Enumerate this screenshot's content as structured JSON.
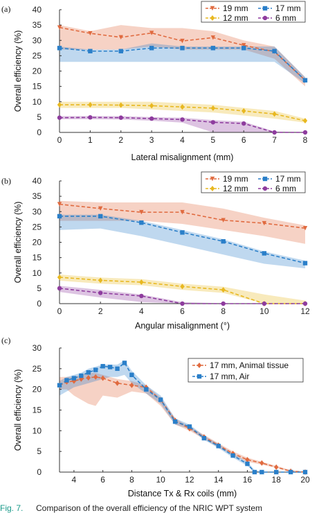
{
  "chart_data": [
    {
      "type": "line",
      "panel_label": "(a)",
      "xlabel": "Lateral misalignment (mm)",
      "ylabel": "Overall efficiency (%)",
      "xlim": [
        0,
        8
      ],
      "ylim": [
        0,
        40
      ],
      "xticks": [
        0,
        1,
        2,
        3,
        4,
        5,
        6,
        7,
        8
      ],
      "yticks": [
        0,
        5,
        10,
        15,
        20,
        25,
        30,
        35,
        40
      ],
      "legend_position": "top-right",
      "legend_columns": 2,
      "grid": false,
      "series": [
        {
          "name": "19 mm",
          "color": "#e06a3f",
          "marker": "triangle-down",
          "x": [
            0,
            1,
            2,
            3,
            4,
            5,
            6,
            7,
            8
          ],
          "values": [
            34.2,
            32.3,
            31.0,
            32.4,
            29.8,
            30.9,
            28.4,
            26.3,
            17.0
          ],
          "band_upper": [
            35,
            33,
            35,
            34,
            34,
            33,
            30,
            28,
            18
          ],
          "band_lower": [
            27,
            27,
            27,
            28,
            27,
            27,
            27,
            24,
            15
          ]
        },
        {
          "name": "17 mm",
          "color": "#2a7fc9",
          "marker": "square",
          "x": [
            0,
            1,
            2,
            3,
            4,
            5,
            6,
            7,
            8
          ],
          "values": [
            27.5,
            26.5,
            26.5,
            27.5,
            27.5,
            27.5,
            27.5,
            26.5,
            17.0
          ],
          "band_upper": [
            28,
            27,
            27,
            29,
            28,
            28,
            28,
            28,
            18
          ],
          "band_lower": [
            23,
            23,
            23,
            23,
            23,
            23,
            23,
            23,
            16
          ]
        },
        {
          "name": "12 mm",
          "color": "#e8b820",
          "marker": "diamond",
          "x": [
            0,
            1,
            2,
            3,
            4,
            5,
            6,
            7,
            8
          ],
          "values": [
            9.0,
            9.0,
            8.9,
            8.7,
            8.3,
            7.9,
            7.0,
            6.0,
            3.8
          ],
          "band_upper": [
            10,
            10,
            10,
            10,
            9.5,
            9,
            8,
            7,
            4.5
          ],
          "band_lower": [
            8,
            8,
            8,
            7.5,
            7,
            6.5,
            5.5,
            4.5,
            3.2
          ]
        },
        {
          "name": "6 mm",
          "color": "#8e3c9e",
          "marker": "circle",
          "x": [
            0,
            1,
            2,
            3,
            4,
            5,
            6,
            7,
            8
          ],
          "values": [
            4.8,
            4.9,
            4.8,
            4.5,
            4.2,
            3.3,
            2.9,
            0.0,
            0.0
          ],
          "band_upper": [
            5.3,
            5.3,
            5.3,
            5.0,
            4.8,
            4.0,
            3.5,
            0.3,
            0.1
          ],
          "band_lower": [
            4.3,
            4.3,
            4.2,
            3.8,
            3.2,
            0.0,
            0.0,
            0.0,
            0.0
          ]
        }
      ]
    },
    {
      "type": "line",
      "panel_label": "(b)",
      "xlabel": "Angular misalignment (°)",
      "ylabel": "Overall efficiency (%)",
      "xlim": [
        0,
        12
      ],
      "ylim": [
        0,
        40
      ],
      "xticks": [
        0,
        2,
        4,
        6,
        8,
        10,
        12
      ],
      "yticks": [
        0,
        5,
        10,
        15,
        20,
        25,
        30,
        35,
        40
      ],
      "legend_position": "top-right",
      "legend_columns": 2,
      "grid": false,
      "series": [
        {
          "name": "19 mm",
          "color": "#e06a3f",
          "marker": "triangle-down",
          "x": [
            0,
            2,
            4,
            6,
            8,
            10,
            12
          ],
          "values": [
            32.4,
            31.0,
            29.8,
            29.8,
            27.2,
            26.2,
            24.6
          ],
          "band_upper": [
            33.5,
            33,
            33,
            33,
            31,
            28,
            25.5
          ],
          "band_lower": [
            27,
            27,
            27,
            26,
            24,
            22,
            19.5
          ]
        },
        {
          "name": "17 mm",
          "color": "#2a7fc9",
          "marker": "square",
          "x": [
            0,
            2,
            4,
            6,
            8,
            10,
            12
          ],
          "values": [
            28.5,
            28.5,
            26.4,
            23.2,
            20.3,
            16.4,
            13.2
          ],
          "band_upper": [
            29,
            29,
            27,
            24,
            21,
            17,
            14
          ],
          "band_lower": [
            24,
            24.5,
            22,
            19,
            16,
            13,
            11.5
          ]
        },
        {
          "name": "12 mm",
          "color": "#e8b820",
          "marker": "diamond",
          "x": [
            0,
            2,
            4,
            6,
            8,
            10,
            12
          ],
          "values": [
            8.6,
            7.6,
            7.0,
            5.6,
            4.5,
            0.0,
            0.0
          ],
          "band_upper": [
            9.5,
            8.5,
            8.0,
            6.5,
            5.5,
            3.0,
            1.0
          ],
          "band_lower": [
            7.5,
            6.5,
            6.0,
            4.5,
            3.5,
            0.0,
            0.0
          ]
        },
        {
          "name": "6 mm",
          "color": "#8e3c9e",
          "marker": "circle",
          "x": [
            0,
            2,
            4,
            6,
            8,
            10,
            12
          ],
          "values": [
            5.0,
            3.5,
            2.5,
            0.0,
            0.0,
            0.0,
            0.0
          ],
          "band_upper": [
            5.8,
            4.5,
            3.0,
            0.5,
            0.1,
            0.0,
            0.0
          ],
          "band_lower": [
            3.8,
            2.0,
            0.5,
            0.0,
            0.0,
            0.0,
            0.0
          ]
        }
      ]
    },
    {
      "type": "line",
      "panel_label": "(c)",
      "xlabel": "Distance Tx & Rx coils (mm)",
      "ylabel": "Overall efficiency (%)",
      "xlim": [
        3,
        20
      ],
      "ylim": [
        0,
        30
      ],
      "xticks": [
        4,
        6,
        8,
        10,
        12,
        14,
        16,
        18,
        20
      ],
      "yticks": [
        0,
        5,
        10,
        15,
        20,
        25,
        30
      ],
      "legend_position": "top-right",
      "legend_columns": 1,
      "grid": false,
      "series": [
        {
          "name": "17 mm, Animal tissue",
          "color": "#e06a3f",
          "marker": "diamond",
          "x": [
            3,
            3.5,
            4,
            4.5,
            5,
            5.5,
            6,
            7,
            8,
            9,
            10,
            11,
            12,
            13,
            14,
            15,
            16,
            17,
            18,
            19,
            20
          ],
          "values": [
            21.0,
            21.8,
            22.0,
            22.5,
            22.8,
            23.0,
            22.7,
            21.5,
            21.0,
            20.5,
            17.5,
            12.5,
            10.5,
            8.5,
            6.5,
            4.5,
            3.0,
            2.2,
            1.2,
            0.2,
            0.0
          ],
          "band_upper": [
            23,
            23,
            23,
            23.5,
            24,
            24,
            23.5,
            22.5,
            22,
            21,
            18,
            13,
            11,
            9,
            7,
            5,
            3.5,
            2.5,
            1.5,
            0.5,
            0.1
          ],
          "band_lower": [
            20,
            20,
            18.5,
            17.5,
            16.5,
            16,
            18.5,
            18,
            19.5,
            19,
            16,
            11.5,
            10,
            8,
            6,
            4,
            2.5,
            1.8,
            1.0,
            0.0,
            0.0
          ]
        },
        {
          "name": "17 mm, Air",
          "color": "#2a7fc9",
          "marker": "square",
          "x": [
            3,
            3.5,
            4,
            4.5,
            5,
            5.5,
            6,
            6.5,
            7,
            7.5,
            8,
            9,
            10,
            11,
            12,
            13,
            14,
            15,
            16,
            16.5,
            17,
            18,
            19,
            20
          ],
          "values": [
            21.0,
            22.2,
            22.7,
            23.3,
            24.1,
            24.7,
            25.6,
            25.4,
            25.0,
            26.4,
            23.5,
            20.0,
            17.5,
            12.2,
            11.0,
            8.2,
            6.3,
            4.0,
            2.0,
            0.0,
            0.0,
            0.0,
            0.0,
            0.0
          ],
          "band_upper": [
            22,
            23,
            23.5,
            24,
            25,
            25.5,
            26,
            26,
            26,
            27,
            24.5,
            21,
            18.5,
            13,
            11.5,
            8.8,
            6.8,
            4.5,
            2.5,
            0.5,
            0.1,
            0.0,
            0.0,
            0.0
          ],
          "band_lower": [
            18.5,
            19.5,
            20.5,
            21,
            21.5,
            22,
            22.5,
            23,
            23,
            23.5,
            21.5,
            19,
            16.5,
            11.5,
            10.5,
            7.8,
            5.8,
            3.5,
            1.5,
            0.0,
            0.0,
            0.0,
            0.0,
            0.0
          ]
        }
      ]
    }
  ],
  "caption": {
    "label": "Fig. 7.",
    "text": "Comparison of the overall efficiency of the NRIC WPT system"
  }
}
